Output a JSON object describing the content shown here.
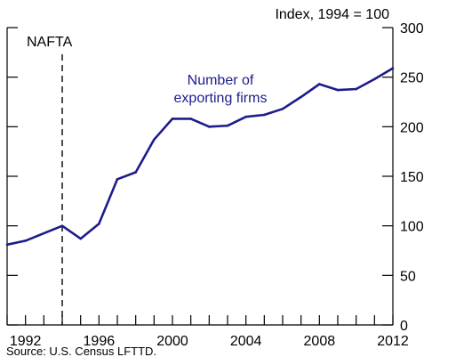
{
  "chart_data": {
    "type": "line",
    "unit_label": "Index, 1994 = 100",
    "x": [
      1991,
      1992,
      1993,
      1994,
      1995,
      1996,
      1997,
      1998,
      1999,
      2000,
      2001,
      2002,
      2003,
      2004,
      2005,
      2006,
      2007,
      2008,
      2009,
      2010,
      2011,
      2012
    ],
    "series": [
      {
        "name_lines": [
          "Number of",
          "exporting firms"
        ],
        "values": [
          81,
          85,
          100,
          87,
          102,
          147,
          154,
          187,
          208,
          208,
          200,
          201,
          210,
          212,
          218,
          230,
          243,
          237,
          238,
          248,
          259
        ],
        "x": [
          1991,
          1992,
          1994,
          1995,
          1996,
          1997,
          1998,
          1999,
          2000,
          2001,
          2002,
          2003,
          2004,
          2005,
          2006,
          2007,
          2008,
          2009,
          2010,
          2011,
          2012
        ]
      }
    ],
    "x_ticks": [
      "1992",
      "1996",
      "2000",
      "2004",
      "2008",
      "2012"
    ],
    "y_ticks": [
      "0",
      "50",
      "100",
      "150",
      "200",
      "250",
      "300"
    ],
    "xlim": [
      1991,
      2012
    ],
    "ylim": [
      0,
      300
    ],
    "annotation": {
      "label": "NAFTA",
      "x": 1994
    },
    "source": "Source: U.S. Census LFTTD.",
    "colors": {
      "series": "#1c1c8c",
      "axis": "#000000"
    }
  }
}
